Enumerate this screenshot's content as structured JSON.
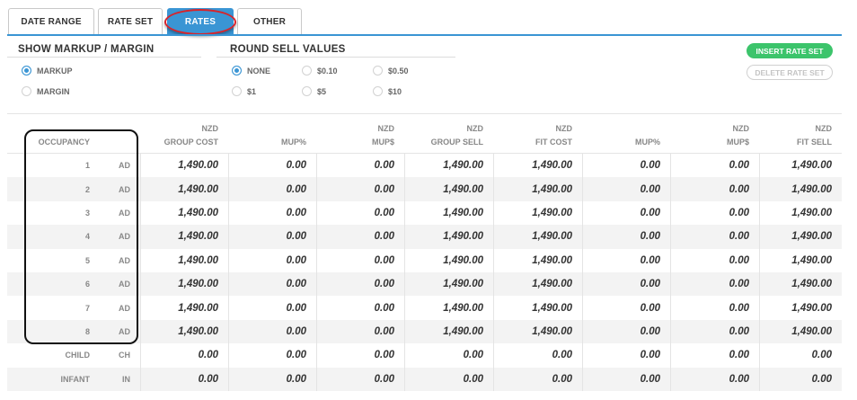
{
  "tabs": [
    {
      "label": "DATE RANGE",
      "active": false
    },
    {
      "label": "RATE SET",
      "active": false
    },
    {
      "label": "RATES",
      "active": true
    },
    {
      "label": "OTHER",
      "active": false
    }
  ],
  "markup": {
    "title": "SHOW MARKUP / MARGIN",
    "options": [
      {
        "label": "MARKUP",
        "selected": true
      },
      {
        "label": "MARGIN",
        "selected": false
      }
    ]
  },
  "round": {
    "title": "ROUND SELL VALUES",
    "options": [
      {
        "label": "NONE",
        "selected": true
      },
      {
        "label": "$0.10",
        "selected": false
      },
      {
        "label": "$0.50",
        "selected": false
      },
      {
        "label": "$1",
        "selected": false
      },
      {
        "label": "$5",
        "selected": false
      },
      {
        "label": "$10",
        "selected": false
      }
    ]
  },
  "buttons": {
    "insert": "INSERT RATE SET",
    "delete": "DELETE RATE SET"
  },
  "colors": {
    "accent": "#3a95d4",
    "insert_button": "#3cc46b",
    "highlight_ring": "#d8232a"
  },
  "table": {
    "occupancy_header": "OCCUPANCY",
    "columns": [
      {
        "top": "NZD",
        "bottom": "GROUP COST"
      },
      {
        "top": "",
        "bottom": "MUP%"
      },
      {
        "top": "NZD",
        "bottom": "MUP$"
      },
      {
        "top": "NZD",
        "bottom": "GROUP SELL"
      },
      {
        "top": "NZD",
        "bottom": "FIT COST"
      },
      {
        "top": "",
        "bottom": "MUP%"
      },
      {
        "top": "NZD",
        "bottom": "MUP$"
      },
      {
        "top": "NZD",
        "bottom": "FIT SELL"
      }
    ],
    "rows": [
      {
        "occ": "1",
        "code": "AD",
        "values": [
          "1,490.00",
          "0.00",
          "0.00",
          "1,490.00",
          "1,490.00",
          "0.00",
          "0.00",
          "1,490.00"
        ]
      },
      {
        "occ": "2",
        "code": "AD",
        "values": [
          "1,490.00",
          "0.00",
          "0.00",
          "1,490.00",
          "1,490.00",
          "0.00",
          "0.00",
          "1,490.00"
        ]
      },
      {
        "occ": "3",
        "code": "AD",
        "values": [
          "1,490.00",
          "0.00",
          "0.00",
          "1,490.00",
          "1,490.00",
          "0.00",
          "0.00",
          "1,490.00"
        ]
      },
      {
        "occ": "4",
        "code": "AD",
        "values": [
          "1,490.00",
          "0.00",
          "0.00",
          "1,490.00",
          "1,490.00",
          "0.00",
          "0.00",
          "1,490.00"
        ]
      },
      {
        "occ": "5",
        "code": "AD",
        "values": [
          "1,490.00",
          "0.00",
          "0.00",
          "1,490.00",
          "1,490.00",
          "0.00",
          "0.00",
          "1,490.00"
        ]
      },
      {
        "occ": "6",
        "code": "AD",
        "values": [
          "1,490.00",
          "0.00",
          "0.00",
          "1,490.00",
          "1,490.00",
          "0.00",
          "0.00",
          "1,490.00"
        ]
      },
      {
        "occ": "7",
        "code": "AD",
        "values": [
          "1,490.00",
          "0.00",
          "0.00",
          "1,490.00",
          "1,490.00",
          "0.00",
          "0.00",
          "1,490.00"
        ]
      },
      {
        "occ": "8",
        "code": "AD",
        "values": [
          "1,490.00",
          "0.00",
          "0.00",
          "1,490.00",
          "1,490.00",
          "0.00",
          "0.00",
          "1,490.00"
        ]
      },
      {
        "occ": "CHILD",
        "code": "CH",
        "values": [
          "0.00",
          "0.00",
          "0.00",
          "0.00",
          "0.00",
          "0.00",
          "0.00",
          "0.00"
        ]
      },
      {
        "occ": "INFANT",
        "code": "IN",
        "values": [
          "0.00",
          "0.00",
          "0.00",
          "0.00",
          "0.00",
          "0.00",
          "0.00",
          "0.00"
        ]
      }
    ]
  }
}
